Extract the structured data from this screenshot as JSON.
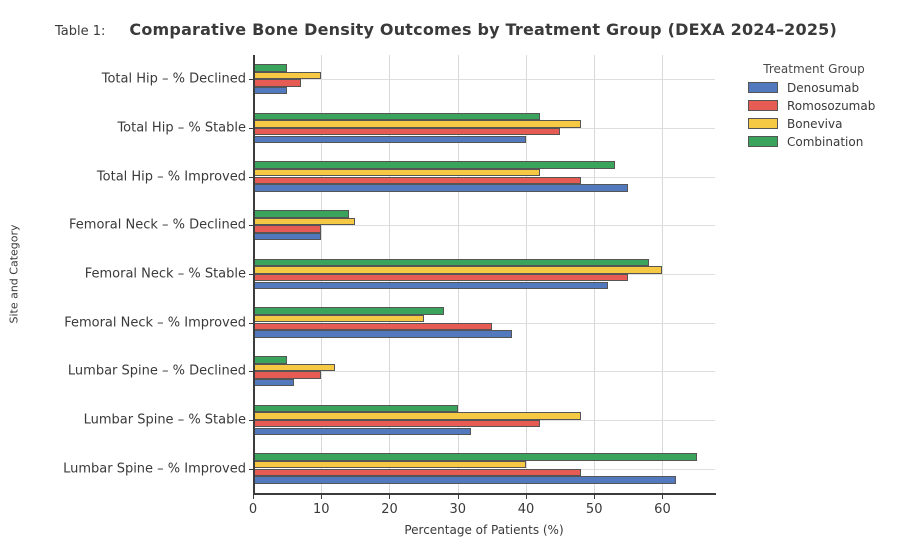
{
  "page": {
    "table_label": "Table 1:",
    "title": "Comparative Bone Density Outcomes by Treatment Group (DEXA 2024–2025)"
  },
  "chart_data": {
    "type": "bar",
    "orientation": "horizontal",
    "title": "Comparative Bone Density Outcomes by Treatment Group (DEXA 2024–2025)",
    "xlabel": "Percentage of Patients (%)",
    "ylabel": "Site and Category",
    "legend_title": "Treatment Group",
    "legend_position": "outside-upper-right",
    "grid": true,
    "xlim": [
      0,
      67.7
    ],
    "xticks": [
      0,
      10,
      20,
      30,
      40,
      50,
      60
    ],
    "categories": [
      "Total Hip – % Declined",
      "Total Hip – % Stable",
      "Total Hip – % Improved",
      "Femoral Neck – % Declined",
      "Femoral Neck – % Stable",
      "Femoral Neck – % Improved",
      "Lumbar Spine – % Declined",
      "Lumbar Spine – % Stable",
      "Lumbar Spine – % Improved"
    ],
    "series": [
      {
        "name": "Denosumab",
        "color": "#5279BE",
        "values": [
          5,
          40,
          55,
          10,
          52,
          38,
          6,
          32,
          62
        ]
      },
      {
        "name": "Romosozumab",
        "color": "#E65C55",
        "values": [
          7,
          45,
          48,
          10,
          55,
          35,
          10,
          42,
          48
        ]
      },
      {
        "name": "Boneviva",
        "color": "#F5C944",
        "values": [
          10,
          48,
          42,
          15,
          60,
          25,
          12,
          48,
          40
        ]
      },
      {
        "name": "Combination",
        "color": "#3AA35C",
        "values": [
          5,
          42,
          53,
          14,
          58,
          28,
          5,
          30,
          65
        ]
      }
    ],
    "colors": {
      "axis": "#3C3C3C",
      "grid": "#D9D9D9",
      "bar_edge": "#555555",
      "text": "#3A3A3A"
    },
    "note": "Within each category group, bars are drawn top-to-bottom as Combination, Boneviva, Romosozumab, Denosumab; series order reflects legend order."
  }
}
